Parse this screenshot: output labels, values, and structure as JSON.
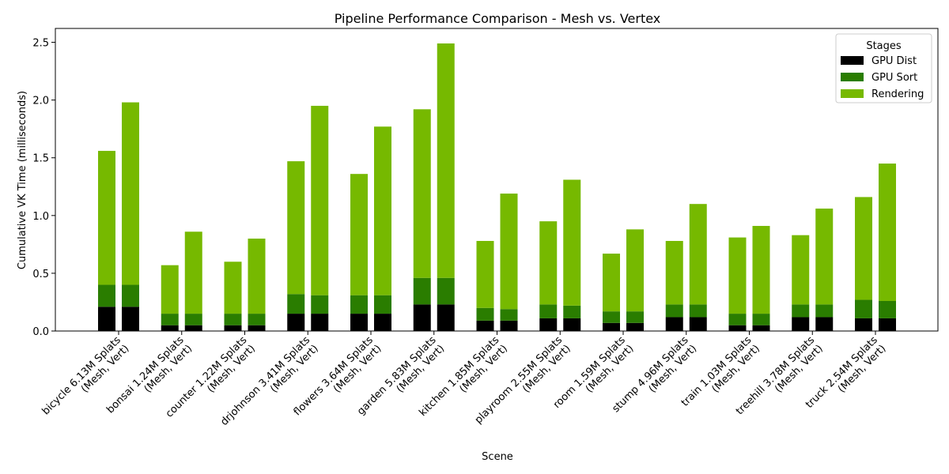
{
  "chart_data": {
    "type": "bar",
    "stacked": true,
    "title": "Pipeline Performance Comparison - Mesh vs. Vertex",
    "xlabel": "Scene",
    "ylabel": "Cumulative VK Time (milliseconds)",
    "ylim": [
      0,
      2.62
    ],
    "yticks": [
      "0.0",
      "0.5",
      "1.0",
      "1.5",
      "2.0",
      "2.5"
    ],
    "ytick_values": [
      0,
      0.5,
      1.0,
      1.5,
      2.0,
      2.5
    ],
    "grid": false,
    "legend": {
      "title": "Stages",
      "position": "top-right",
      "entries": [
        "GPU Dist",
        "GPU Sort",
        "Rendering"
      ]
    },
    "colors": {
      "GPU Dist": "#000000",
      "GPU Sort": "#2a7d00",
      "Rendering": "#76b900"
    },
    "categories": [
      "bicycle 6.13M Splats\n(Mesh, Vert)",
      "bonsai 1.24M Splats\n(Mesh, Vert)",
      "counter 1.22M Splats\n(Mesh, Vert)",
      "drjohnson 3.41M Splats\n(Mesh, Vert)",
      "flowers 3.64M Splats\n(Mesh, Vert)",
      "garden 5.83M Splats\n(Mesh, Vert)",
      "kitchen 1.85M Splats\n(Mesh, Vert)",
      "playroom 2.55M Splats\n(Mesh, Vert)",
      "room 1.59M Splats\n(Mesh, Vert)",
      "stump 4.96M Splats\n(Mesh, Vert)",
      "train 1.03M Splats\n(Mesh, Vert)",
      "treehill 3.78M Splats\n(Mesh, Vert)",
      "truck 2.54M Splats\n(Mesh, Vert)"
    ],
    "groups": [
      "Mesh",
      "Vert"
    ],
    "series": [
      {
        "name": "GPU Dist",
        "mesh": [
          0.21,
          0.05,
          0.05,
          0.15,
          0.15,
          0.23,
          0.09,
          0.11,
          0.07,
          0.12,
          0.05,
          0.12,
          0.11
        ],
        "vert": [
          0.21,
          0.05,
          0.05,
          0.15,
          0.15,
          0.23,
          0.09,
          0.11,
          0.07,
          0.12,
          0.05,
          0.12,
          0.11
        ]
      },
      {
        "name": "GPU Sort",
        "mesh": [
          0.19,
          0.1,
          0.1,
          0.17,
          0.16,
          0.23,
          0.11,
          0.12,
          0.1,
          0.11,
          0.1,
          0.11,
          0.16
        ],
        "vert": [
          0.19,
          0.1,
          0.1,
          0.16,
          0.16,
          0.23,
          0.1,
          0.11,
          0.1,
          0.11,
          0.1,
          0.11,
          0.15
        ]
      },
      {
        "name": "Rendering",
        "mesh": [
          1.16,
          0.42,
          0.45,
          1.15,
          1.05,
          1.46,
          0.58,
          0.72,
          0.5,
          0.55,
          0.66,
          0.6,
          0.89
        ],
        "vert": [
          1.58,
          0.71,
          0.65,
          1.64,
          1.46,
          2.03,
          1.0,
          1.09,
          0.71,
          0.87,
          0.76,
          0.83,
          1.19
        ]
      }
    ]
  }
}
